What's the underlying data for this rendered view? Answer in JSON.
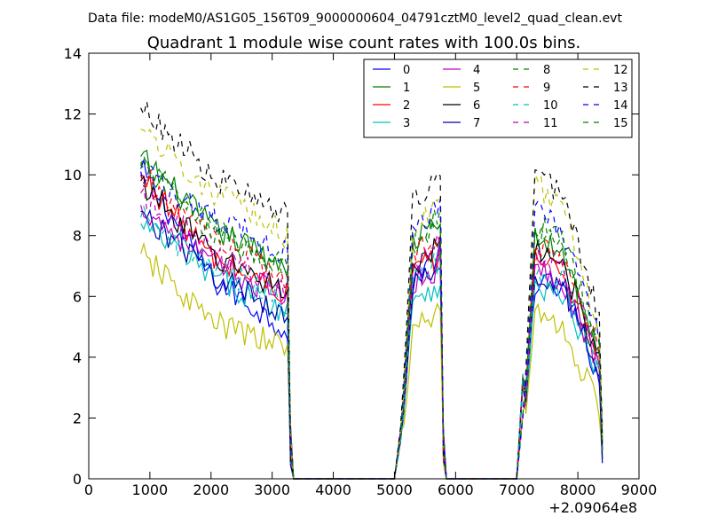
{
  "suptitle": "Data file: modeM0/AS1G05_156T09_9000000604_04791cztM0_level2_quad_clean.evt",
  "title": "Quadrant 1 module wise count rates with 100.0s bins.",
  "offset_label": "+2.09064e8",
  "chart_data": {
    "type": "line",
    "title": "Quadrant 1 module wise count rates with 100.0s bins.",
    "xlabel": "",
    "ylabel": "",
    "x_offset": 209064000,
    "xlim": [
      0,
      9000
    ],
    "ylim": [
      0,
      14
    ],
    "xticks": [
      0,
      1000,
      2000,
      3000,
      4000,
      5000,
      6000,
      7000,
      8000,
      9000
    ],
    "xtick_labels": [
      "0",
      "1000",
      "2000",
      "3000",
      "4000",
      "5000",
      "6000",
      "7000",
      "8000",
      "9000"
    ],
    "yticks": [
      0,
      2,
      4,
      6,
      8,
      10,
      12,
      14
    ],
    "ytick_labels": [
      "0",
      "2",
      "4",
      "6",
      "8",
      "10",
      "12",
      "14"
    ],
    "grid": false,
    "legend_position": "top-right",
    "legend_columns": 4,
    "segments": [
      {
        "x_start": 850,
        "x_end": 3250
      },
      {
        "x_start": 5150,
        "x_end": 5750
      },
      {
        "x_start": 7150,
        "x_end": 8350
      }
    ],
    "gap_x": [
      3350,
      4000,
      5000,
      5050,
      5850,
      6000,
      7000,
      7050
    ],
    "series": [
      {
        "name": "0",
        "color": "#0000ff",
        "dash": "solid",
        "seg": [
          [
            10.2,
            6.5,
            4.9
          ],
          [
            6.5,
            7.4
          ],
          [
            6.6,
            6.2,
            3.4
          ]
        ]
      },
      {
        "name": "1",
        "color": "#008000",
        "dash": "solid",
        "seg": [
          [
            10.6,
            8.2,
            7.0
          ],
          [
            7.6,
            8.4
          ],
          [
            8.0,
            7.5,
            4.1
          ]
        ]
      },
      {
        "name": "2",
        "color": "#ff0000",
        "dash": "solid",
        "seg": [
          [
            10.0,
            7.2,
            6.1
          ],
          [
            6.6,
            7.3
          ],
          [
            7.4,
            6.8,
            3.9
          ]
        ]
      },
      {
        "name": "3",
        "color": "#00bfbf",
        "dash": "solid",
        "seg": [
          [
            8.4,
            6.6,
            5.5
          ],
          [
            5.9,
            6.4
          ],
          [
            6.4,
            6.0,
            3.2
          ]
        ]
      },
      {
        "name": "4",
        "color": "#bf00bf",
        "dash": "solid",
        "seg": [
          [
            9.0,
            7.0,
            6.0
          ],
          [
            6.3,
            7.0
          ],
          [
            7.0,
            6.6,
            3.7
          ]
        ]
      },
      {
        "name": "5",
        "color": "#bfbf00",
        "dash": "solid",
        "seg": [
          [
            7.4,
            5.1,
            4.3
          ],
          [
            4.5,
            5.6
          ],
          [
            5.7,
            4.9,
            2.4
          ]
        ]
      },
      {
        "name": "6",
        "color": "#000000",
        "dash": "solid",
        "seg": [
          [
            9.8,
            7.3,
            6.2
          ],
          [
            6.8,
            7.6
          ],
          [
            7.6,
            7.1,
            4.0
          ]
        ]
      },
      {
        "name": "7",
        "color": "#0000aa",
        "dash": "solid",
        "seg": [
          [
            8.8,
            6.7,
            5.4
          ],
          [
            6.0,
            7.0
          ],
          [
            6.9,
            6.4,
            3.6
          ]
        ]
      },
      {
        "name": "8",
        "color": "#008000",
        "dash": "dashed",
        "seg": [
          [
            10.4,
            8.2,
            7.0
          ],
          [
            7.7,
            8.6
          ],
          [
            8.4,
            7.9,
            4.4
          ]
        ]
      },
      {
        "name": "9",
        "color": "#ff0000",
        "dash": "dashed",
        "seg": [
          [
            10.0,
            7.8,
            6.6
          ],
          [
            7.1,
            8.0
          ],
          [
            7.9,
            7.4,
            4.1
          ]
        ]
      },
      {
        "name": "10",
        "color": "#00bfbf",
        "dash": "dashed",
        "seg": [
          [
            8.6,
            6.9,
            5.8
          ],
          [
            6.2,
            7.2
          ],
          [
            7.0,
            6.6,
            3.5
          ]
        ]
      },
      {
        "name": "11",
        "color": "#bf00bf",
        "dash": "dashed",
        "seg": [
          [
            9.4,
            7.4,
            6.3
          ],
          [
            6.8,
            7.8
          ],
          [
            7.6,
            7.1,
            3.9
          ]
        ]
      },
      {
        "name": "12",
        "color": "#bfbf00",
        "dash": "dashed",
        "seg": [
          [
            11.5,
            9.4,
            8.0
          ],
          [
            8.1,
            9.0
          ],
          [
            9.8,
            9.1,
            5.0
          ]
        ]
      },
      {
        "name": "13",
        "color": "#000000",
        "dash": "dashed",
        "seg": [
          [
            12.2,
            9.9,
            8.6
          ],
          [
            8.8,
            10.1
          ],
          [
            10.0,
            9.4,
            5.3
          ]
        ]
      },
      {
        "name": "14",
        "color": "#0000ff",
        "dash": "dashed",
        "seg": [
          [
            10.1,
            8.6,
            7.4
          ],
          [
            7.9,
            8.9
          ],
          [
            8.9,
            8.3,
            4.6
          ]
        ]
      },
      {
        "name": "15",
        "color": "#008000",
        "dash": "dashed",
        "seg": [
          [
            10.3,
            8.0,
            6.9
          ],
          [
            7.4,
            8.5
          ],
          [
            8.2,
            7.8,
            4.3
          ]
        ]
      }
    ]
  }
}
